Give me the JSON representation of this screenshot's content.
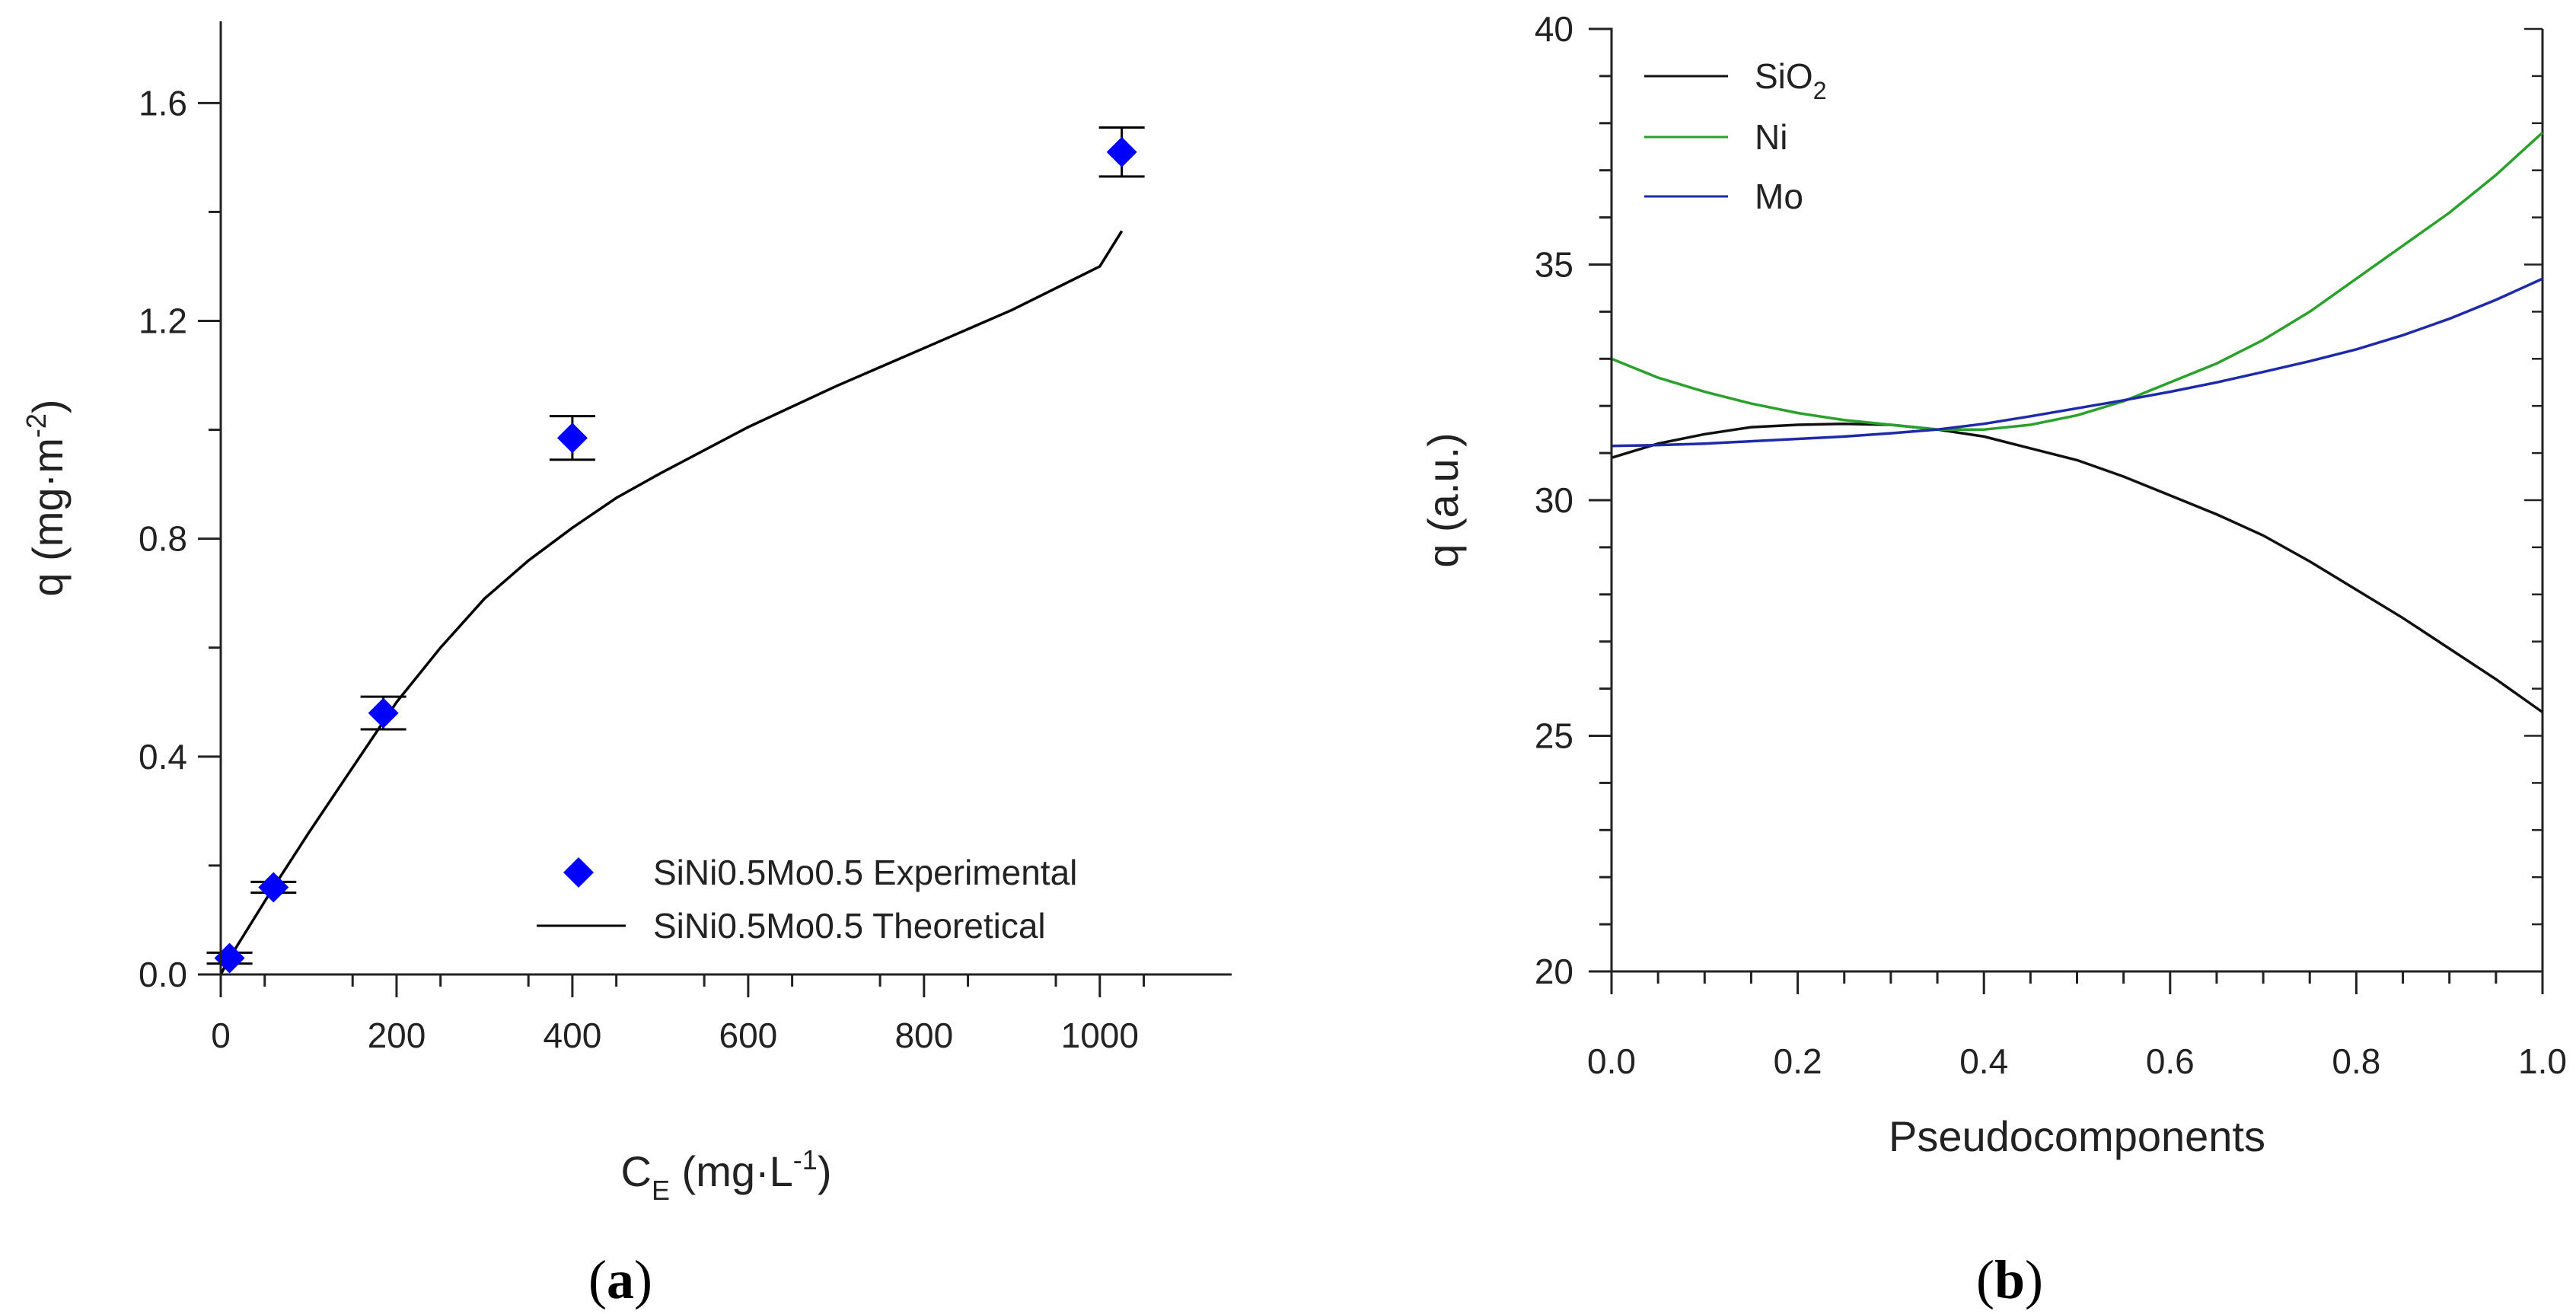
{
  "chart_data": [
    {
      "type": "scatter",
      "panel_label": "(a)",
      "caption_open": "(",
      "caption_letter": "a",
      "caption_close": ")",
      "xlabel_main": "C",
      "xlabel_sub": "E",
      "xlabel_rest": " (mg·L",
      "xlabel_sup": "-1",
      "xlabel_end": ")",
      "ylabel_main": "q (mg·m",
      "ylabel_sup": "-2",
      "ylabel_end": ")",
      "xlim": [
        0,
        1150
      ],
      "ylim": [
        0,
        1.75
      ],
      "xticks": [
        0,
        200,
        400,
        600,
        800,
        1000
      ],
      "xtick_labels": [
        "0",
        "200",
        "400",
        "600",
        "800",
        "1000"
      ],
      "yticks": [
        0,
        0.4,
        0.8,
        1.2,
        1.6
      ],
      "ytick_labels": [
        "0.0",
        "0.4",
        "0.8",
        "1.2",
        "1.6"
      ],
      "series": [
        {
          "name": "SiNi0.5Mo0.5 Experimental",
          "kind": "points",
          "color": "#0000ff",
          "points": [
            {
              "x": 10,
              "y": 0.03,
              "err": 0.01
            },
            {
              "x": 60,
              "y": 0.16,
              "err": 0.01
            },
            {
              "x": 185,
              "y": 0.48,
              "err": 0.03
            },
            {
              "x": 400,
              "y": 0.985,
              "err": 0.04
            },
            {
              "x": 1025,
              "y": 1.51,
              "err": 0.045
            }
          ]
        },
        {
          "name": "SiNi0.5Mo0.5 Theoretical",
          "kind": "line",
          "color": "#000000",
          "x": [
            0,
            10,
            60,
            100,
            150,
            200,
            250,
            300,
            350,
            400,
            450,
            500,
            600,
            700,
            800,
            900,
            1000,
            1025
          ],
          "y": [
            0,
            0.03,
            0.16,
            0.26,
            0.38,
            0.5,
            0.6,
            0.69,
            0.76,
            0.82,
            0.875,
            0.92,
            1.005,
            1.08,
            1.15,
            1.22,
            1.3,
            1.365
          ]
        }
      ],
      "legend": [
        "SiNi0.5Mo0.5 Experimental",
        "SiNi0.5Mo0.5 Theoretical"
      ]
    },
    {
      "type": "line",
      "panel_label": "(b)",
      "caption_open": "(",
      "caption_letter": "b",
      "caption_close": ")",
      "xlabel": "Pseudocomponents",
      "ylabel": "q (a.u.)",
      "xlim": [
        0,
        1.0
      ],
      "ylim": [
        20,
        40
      ],
      "xticks": [
        0,
        0.2,
        0.4,
        0.6,
        0.8,
        1.0
      ],
      "xtick_labels": [
        "0.0",
        "0.2",
        "0.4",
        "0.6",
        "0.8",
        "1.0"
      ],
      "yticks": [
        20,
        25,
        30,
        35,
        40
      ],
      "ytick_labels": [
        "20",
        "25",
        "30",
        "35",
        "40"
      ],
      "x": [
        0,
        0.05,
        0.1,
        0.15,
        0.2,
        0.25,
        0.3,
        0.35,
        0.4,
        0.45,
        0.5,
        0.55,
        0.6,
        0.65,
        0.7,
        0.75,
        0.8,
        0.85,
        0.9,
        0.95,
        1.0
      ],
      "series": [
        {
          "name": "SiO2",
          "label_main": "SiO",
          "label_sub": "2",
          "color": "#111111",
          "values": [
            30.9,
            31.2,
            31.4,
            31.55,
            31.6,
            31.62,
            31.6,
            31.5,
            31.35,
            31.1,
            30.85,
            30.5,
            30.1,
            29.7,
            29.25,
            28.7,
            28.1,
            27.5,
            26.85,
            26.2,
            25.5
          ]
        },
        {
          "name": "Ni",
          "label_main": "Ni",
          "label_sub": "",
          "color": "#2ca02c",
          "values": [
            33.0,
            32.6,
            32.3,
            32.05,
            31.85,
            31.7,
            31.6,
            31.5,
            31.5,
            31.6,
            31.8,
            32.1,
            32.5,
            32.9,
            33.4,
            34.0,
            34.7,
            35.4,
            36.1,
            36.9,
            37.8
          ]
        },
        {
          "name": "Mo",
          "label_main": "Mo",
          "label_sub": "",
          "color": "#1f2aa8",
          "values": [
            31.15,
            31.17,
            31.2,
            31.25,
            31.3,
            31.35,
            31.42,
            31.5,
            31.62,
            31.78,
            31.95,
            32.12,
            32.3,
            32.5,
            32.72,
            32.95,
            33.2,
            33.5,
            33.85,
            34.25,
            34.7
          ]
        }
      ]
    }
  ]
}
